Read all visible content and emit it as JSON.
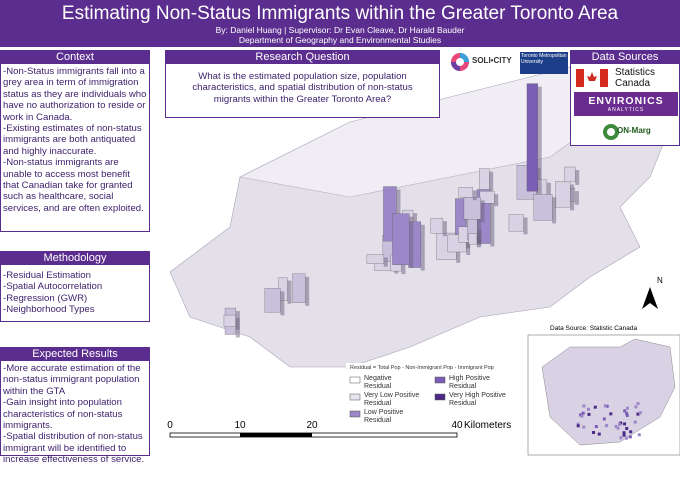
{
  "header": {
    "title": "Estimating Non-Status Immigrants within the Greater Toronto Area",
    "authors": "By: Daniel Huang | Supervisor: Dr Evan Cleave, Dr Harald Bauder",
    "department": "Department of Geography and Environmental Studies"
  },
  "context": {
    "title": "Context",
    "items": [
      "-Non-Status immigrants fall into a grey area in term of immigration status as they are individuals who have no authorization to reside or work in Canada.",
      "-Existing estimates of non-status immigrants are both antiquated and highly inaccurate.",
      "-Non-status immigrants are unable to access most benefit that Canadian take for granted such as healthcare, social services, and are often exploited."
    ]
  },
  "methodology": {
    "title": "Methodology",
    "items": [
      "-Residual Estimation",
      "-Spatial Autocorrelation",
      "-Regression (GWR)",
      "-Neighborhood Types"
    ]
  },
  "expected_results": {
    "title": "Expected Results",
    "items": [
      "-More accurate estimation of the non-status immigrant population within the GTA",
      "-Gain insight into population characteristics of non-status immigrants.",
      "-Spatial distribution of non-status immigrant will be identified to increase effectiveness of service."
    ]
  },
  "research_question": {
    "title": "Research Question",
    "text": "What is the estimated population size, population characteristics, and spatial distribution of non-status migrants within the Greater Toronto Area?"
  },
  "logos": {
    "solicity": "SOLI•CITY",
    "university": "Toronto Metropolitan University"
  },
  "data_sources": {
    "title": "Data Sources",
    "statcan": "Statistics Canada",
    "environics": "ENVIRONICS",
    "environics_sub": "ANALYTICS",
    "onmarg": "ON-Marg"
  },
  "map": {
    "legend_title": "Residual = Total Pop - Non-Immigrant Pop - Immigrant Pop",
    "legend": [
      "Negative Residual",
      "High Positive Residual",
      "Very Low Positive Residual",
      "Very High Positive Residual",
      "Low Positive Residual"
    ],
    "scale": [
      "0",
      "10",
      "20",
      "40"
    ],
    "scale_unit": "Kilometers",
    "north": "N",
    "inset_caption": "Data Source: Statistic Canada"
  }
}
